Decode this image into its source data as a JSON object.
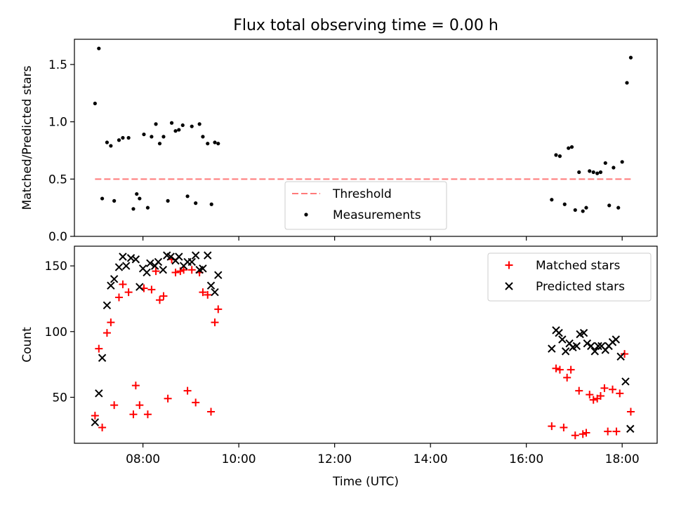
{
  "figure": {
    "title": "Flux total observing time = 0.00 h"
  },
  "chart_data": [
    {
      "type": "scatter",
      "ylabel": "Matched/Predicted stars",
      "xlabel": "",
      "xlim": [
        6.57,
        18.73
      ],
      "ylim": [
        0.0,
        1.72
      ],
      "yticks": [
        0.0,
        0.5,
        1.0,
        1.5
      ],
      "ytick_labels": [
        "0.0",
        "0.5",
        "1.0",
        "1.5"
      ],
      "xticks": [
        8,
        10,
        12,
        14,
        16,
        18
      ],
      "grid": false,
      "legend_position": "lower center",
      "series": [
        {
          "name": "Threshold",
          "kind": "dashed-line",
          "color": "#ff7a7a",
          "x": [
            7.0,
            18.2
          ],
          "y": [
            0.5,
            0.5
          ]
        },
        {
          "name": "Measurements",
          "kind": "points",
          "color": "#000000",
          "points": [
            [
              7.0,
              1.16
            ],
            [
              7.08,
              1.64
            ],
            [
              7.15,
              0.33
            ],
            [
              7.25,
              0.82
            ],
            [
              7.33,
              0.79
            ],
            [
              7.4,
              0.31
            ],
            [
              7.5,
              0.84
            ],
            [
              7.58,
              0.86
            ],
            [
              7.7,
              0.86
            ],
            [
              7.8,
              0.24
            ],
            [
              7.87,
              0.37
            ],
            [
              7.93,
              0.33
            ],
            [
              8.02,
              0.89
            ],
            [
              8.1,
              0.25
            ],
            [
              8.18,
              0.87
            ],
            [
              8.27,
              0.98
            ],
            [
              8.35,
              0.81
            ],
            [
              8.43,
              0.87
            ],
            [
              8.52,
              0.31
            ],
            [
              8.6,
              0.99
            ],
            [
              8.68,
              0.92
            ],
            [
              8.75,
              0.93
            ],
            [
              8.83,
              0.97
            ],
            [
              8.93,
              0.35
            ],
            [
              9.02,
              0.96
            ],
            [
              9.1,
              0.29
            ],
            [
              9.18,
              0.98
            ],
            [
              9.25,
              0.87
            ],
            [
              9.35,
              0.81
            ],
            [
              9.43,
              0.28
            ],
            [
              9.5,
              0.82
            ],
            [
              9.57,
              0.81
            ],
            [
              16.53,
              0.32
            ],
            [
              16.62,
              0.71
            ],
            [
              16.7,
              0.7
            ],
            [
              16.8,
              0.28
            ],
            [
              16.88,
              0.77
            ],
            [
              16.95,
              0.78
            ],
            [
              17.02,
              0.23
            ],
            [
              17.1,
              0.56
            ],
            [
              17.18,
              0.22
            ],
            [
              17.25,
              0.25
            ],
            [
              17.32,
              0.57
            ],
            [
              17.4,
              0.56
            ],
            [
              17.48,
              0.55
            ],
            [
              17.55,
              0.56
            ],
            [
              17.65,
              0.64
            ],
            [
              17.73,
              0.27
            ],
            [
              17.82,
              0.6
            ],
            [
              17.92,
              0.25
            ],
            [
              18.0,
              0.65
            ],
            [
              18.1,
              1.34
            ],
            [
              18.18,
              1.56
            ]
          ]
        }
      ]
    },
    {
      "type": "scatter",
      "ylabel": "Count",
      "xlabel": "Time (UTC)",
      "xlim": [
        6.57,
        18.73
      ],
      "ylim": [
        15,
        165
      ],
      "yticks": [
        50,
        100,
        150
      ],
      "ytick_labels": [
        "50",
        "100",
        "150"
      ],
      "xticks": [
        8,
        10,
        12,
        14,
        16,
        18
      ],
      "xtick_labels": [
        "08:00",
        "10:00",
        "12:00",
        "14:00",
        "16:00",
        "18:00"
      ],
      "grid": false,
      "legend_position": "upper right",
      "series": [
        {
          "name": "Matched stars",
          "kind": "plus",
          "color": "#ff0000",
          "points": [
            [
              7.0,
              36
            ],
            [
              7.08,
              87
            ],
            [
              7.15,
              27
            ],
            [
              7.25,
              99
            ],
            [
              7.33,
              107
            ],
            [
              7.4,
              44
            ],
            [
              7.5,
              126
            ],
            [
              7.58,
              136
            ],
            [
              7.7,
              130
            ],
            [
              7.8,
              37
            ],
            [
              7.85,
              59
            ],
            [
              7.93,
              44
            ],
            [
              8.02,
              133
            ],
            [
              8.1,
              37
            ],
            [
              8.18,
              132
            ],
            [
              8.27,
              146
            ],
            [
              8.35,
              124
            ],
            [
              8.43,
              127
            ],
            [
              8.52,
              49
            ],
            [
              8.6,
              155
            ],
            [
              8.68,
              145
            ],
            [
              8.78,
              146
            ],
            [
              8.85,
              147
            ],
            [
              8.93,
              55
            ],
            [
              9.02,
              147
            ],
            [
              9.1,
              46
            ],
            [
              9.18,
              145
            ],
            [
              9.25,
              130
            ],
            [
              9.35,
              128
            ],
            [
              9.42,
              39
            ],
            [
              9.5,
              107
            ],
            [
              9.57,
              117
            ],
            [
              16.53,
              28
            ],
            [
              16.62,
              72
            ],
            [
              16.7,
              71
            ],
            [
              16.78,
              27
            ],
            [
              16.85,
              65
            ],
            [
              16.93,
              71
            ],
            [
              17.02,
              21
            ],
            [
              17.1,
              55
            ],
            [
              17.18,
              22
            ],
            [
              17.25,
              23
            ],
            [
              17.32,
              52
            ],
            [
              17.4,
              48
            ],
            [
              17.48,
              49
            ],
            [
              17.55,
              51
            ],
            [
              17.63,
              57
            ],
            [
              17.7,
              24
            ],
            [
              17.8,
              56
            ],
            [
              17.88,
              24
            ],
            [
              17.95,
              53
            ],
            [
              18.05,
              83
            ],
            [
              18.18,
              39
            ]
          ]
        },
        {
          "name": "Predicted stars",
          "kind": "cross",
          "color": "#000000",
          "points": [
            [
              7.0,
              31
            ],
            [
              7.08,
              53
            ],
            [
              7.15,
              80
            ],
            [
              7.25,
              120
            ],
            [
              7.33,
              135
            ],
            [
              7.4,
              140
            ],
            [
              7.5,
              149
            ],
            [
              7.58,
              157
            ],
            [
              7.65,
              150
            ],
            [
              7.75,
              156
            ],
            [
              7.85,
              155
            ],
            [
              7.93,
              134
            ],
            [
              8.0,
              148
            ],
            [
              8.08,
              145
            ],
            [
              8.15,
              152
            ],
            [
              8.25,
              150
            ],
            [
              8.32,
              153
            ],
            [
              8.42,
              147
            ],
            [
              8.5,
              158
            ],
            [
              8.58,
              157
            ],
            [
              8.68,
              154
            ],
            [
              8.75,
              157
            ],
            [
              8.85,
              150
            ],
            [
              8.93,
              153
            ],
            [
              9.02,
              153
            ],
            [
              9.1,
              158
            ],
            [
              9.18,
              147
            ],
            [
              9.25,
              148
            ],
            [
              9.35,
              158
            ],
            [
              9.42,
              135
            ],
            [
              9.5,
              130
            ],
            [
              9.57,
              143
            ],
            [
              16.53,
              87
            ],
            [
              16.62,
              101
            ],
            [
              16.68,
              99
            ],
            [
              16.75,
              94
            ],
            [
              16.82,
              85
            ],
            [
              16.9,
              91
            ],
            [
              16.97,
              88
            ],
            [
              17.05,
              89
            ],
            [
              17.12,
              98
            ],
            [
              17.2,
              99
            ],
            [
              17.27,
              91
            ],
            [
              17.35,
              89
            ],
            [
              17.43,
              85
            ],
            [
              17.5,
              89
            ],
            [
              17.57,
              89
            ],
            [
              17.65,
              86
            ],
            [
              17.72,
              89
            ],
            [
              17.8,
              92
            ],
            [
              17.87,
              94
            ],
            [
              17.97,
              81
            ],
            [
              18.07,
              62
            ],
            [
              18.17,
              26
            ]
          ]
        }
      ]
    }
  ]
}
